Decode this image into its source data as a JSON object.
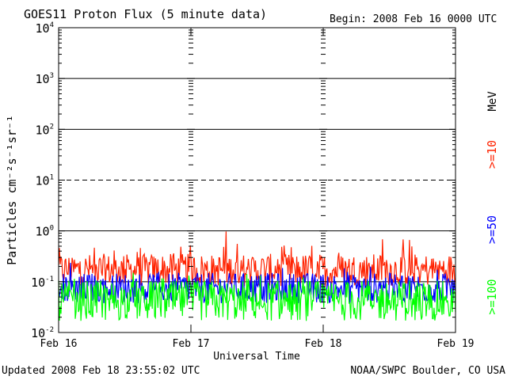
{
  "chart_data": {
    "type": "line",
    "title": "GOES11 Proton Flux (5 minute data)",
    "begin_label": "Begin: 2008 Feb 16 0000 UTC",
    "xlabel": "Universal Time",
    "ylabel": "Particles cm⁻²s⁻¹sr⁻¹",
    "units_label": "MeV",
    "footer_left": "Updated 2008 Feb 18 23:55:02 UTC",
    "footer_right": "NOAA/SWPC Boulder, CO USA",
    "x_ticks": [
      "Feb 16",
      "Feb 17",
      "Feb 18",
      "Feb 19"
    ],
    "y_scale": "log",
    "ylim": [
      0.01,
      10000
    ],
    "y_ticks": [
      {
        "base": "10",
        "exp": "4"
      },
      {
        "base": "10",
        "exp": "3"
      },
      {
        "base": "10",
        "exp": "2"
      },
      {
        "base": "10",
        "exp": "1"
      },
      {
        "base": "10",
        "exp": "0"
      },
      {
        "base": "10",
        "exp": "-1"
      },
      {
        "base": "10",
        "exp": "-2"
      }
    ],
    "threshold_lines": [
      {
        "value": 1000,
        "style": "solid"
      },
      {
        "value": 100,
        "style": "solid"
      },
      {
        "value": 10,
        "style": "dashed"
      },
      {
        "value": 1,
        "style": "solid"
      },
      {
        "value": 0.1,
        "style": "solid"
      }
    ],
    "series": [
      {
        "name": ">=10",
        "color": "#ff2200",
        "baseline": 0.17,
        "spread": 0.32,
        "spike_max": 0.55
      },
      {
        "name": ">=50",
        "color": "#0000ff",
        "baseline": 0.075,
        "spread": 0.3,
        "spike_max": 0.13
      },
      {
        "name": ">=100",
        "color": "#00ff00",
        "baseline": 0.042,
        "spread": 0.4,
        "spike_max": 0.08
      }
    ]
  }
}
